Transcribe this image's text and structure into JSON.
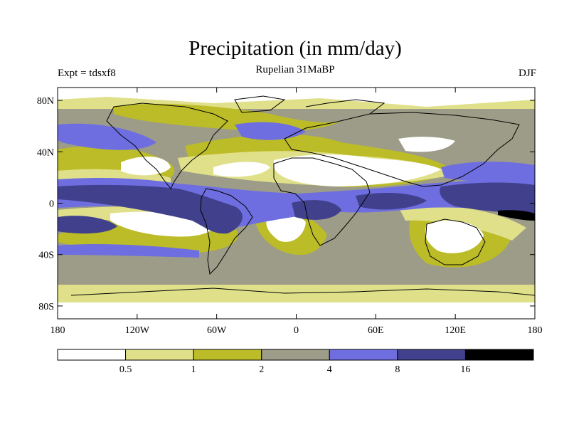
{
  "title": "Precipitation (in mm/day)",
  "subtitle": "Rupelian  31MaBP",
  "left_label": "Expt = tdsxf8",
  "right_label": "DJF",
  "y_ticks": [
    {
      "label": "80N",
      "lat": 80
    },
    {
      "label": "40N",
      "lat": 40
    },
    {
      "label": "0",
      "lat": 0
    },
    {
      "label": "40S",
      "lat": -40
    },
    {
      "label": "80S",
      "lat": -80
    }
  ],
  "x_ticks": [
    {
      "label": "180",
      "lon": -180
    },
    {
      "label": "120W",
      "lon": -120
    },
    {
      "label": "60W",
      "lon": -60
    },
    {
      "label": "0",
      "lon": 0
    },
    {
      "label": "60E",
      "lon": 60
    },
    {
      "label": "120E",
      "lon": 120
    },
    {
      "label": "180",
      "lon": 180
    }
  ],
  "colorbar": {
    "colors": [
      "#ffffff",
      "#e0e08a",
      "#bcbc28",
      "#9c9c88",
      "#6e6ee0",
      "#40408c",
      "#000000"
    ],
    "labels": [
      "0.5",
      "1",
      "2",
      "4",
      "8",
      "16"
    ]
  }
}
